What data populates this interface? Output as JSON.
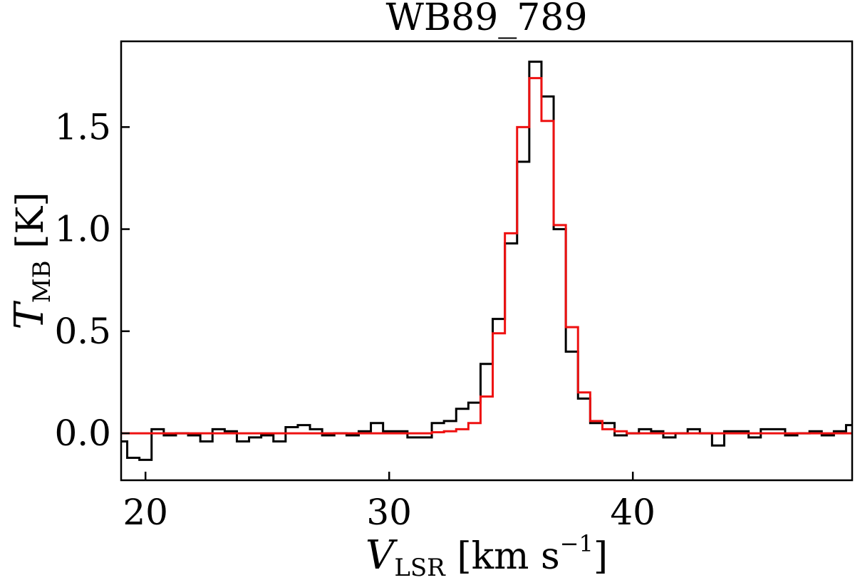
{
  "chart_data": {
    "type": "line",
    "drawstyle": "steps-mid",
    "title": "WB89_789",
    "xlabel": {
      "symbol": "V",
      "subscript": "LSR",
      "unit_open": " [km s",
      "superscript": "−1",
      "unit_close": "]"
    },
    "ylabel": {
      "symbol": "T",
      "subscript": "MB",
      "unit": " [K]"
    },
    "xlim": [
      19.0,
      49.0
    ],
    "ylim": [
      -0.23,
      1.92
    ],
    "xticks": [
      {
        "value": 20,
        "label": "20"
      },
      {
        "value": 30,
        "label": "30"
      },
      {
        "value": 40,
        "label": "40"
      }
    ],
    "yticks": [
      {
        "value": 0.0,
        "label": "0.0"
      },
      {
        "value": 0.5,
        "label": "0.5"
      },
      {
        "value": 1.0,
        "label": "1.0"
      },
      {
        "value": 1.5,
        "label": "1.5"
      }
    ],
    "colors": {
      "observed": "#000000",
      "model": "#ee1111",
      "frame": "#000000"
    },
    "series": [
      {
        "name": "observed",
        "x": [
          19.0,
          19.5,
          20.0,
          20.5,
          21.0,
          21.5,
          22.0,
          22.5,
          23.0,
          23.5,
          24.0,
          24.5,
          25.0,
          25.5,
          26.0,
          26.5,
          27.0,
          27.5,
          28.0,
          28.5,
          29.0,
          29.5,
          30.0,
          30.5,
          31.0,
          31.5,
          32.0,
          32.5,
          33.0,
          33.5,
          34.0,
          34.5,
          35.0,
          35.5,
          36.0,
          36.5,
          37.0,
          37.5,
          38.0,
          38.5,
          39.0,
          39.5,
          40.0,
          40.5,
          41.0,
          41.5,
          42.0,
          42.5,
          43.0,
          43.5,
          44.0,
          44.5,
          45.0,
          45.5,
          46.0,
          46.5,
          47.0,
          47.5,
          48.0,
          48.5,
          49.0
        ],
        "values": [
          -0.04,
          -0.12,
          -0.13,
          0.02,
          -0.01,
          0.0,
          -0.01,
          -0.04,
          0.02,
          0.01,
          -0.04,
          -0.02,
          -0.01,
          -0.04,
          0.03,
          0.04,
          0.02,
          -0.01,
          0.0,
          -0.01,
          0.01,
          0.05,
          0.01,
          0.01,
          -0.02,
          -0.02,
          0.05,
          0.06,
          0.12,
          0.15,
          0.34,
          0.56,
          0.93,
          1.33,
          1.82,
          1.65,
          1.0,
          0.4,
          0.17,
          0.05,
          0.05,
          -0.01,
          0.0,
          0.02,
          0.01,
          -0.02,
          0.0,
          0.02,
          0.0,
          -0.06,
          0.01,
          0.01,
          -0.02,
          0.02,
          0.02,
          -0.01,
          0.0,
          0.01,
          -0.01,
          0.01,
          0.04
        ]
      },
      {
        "name": "model",
        "x": [
          19.0,
          19.5,
          20.0,
          20.5,
          21.0,
          21.5,
          22.0,
          22.5,
          23.0,
          23.5,
          24.0,
          24.5,
          25.0,
          25.5,
          26.0,
          26.5,
          27.0,
          27.5,
          28.0,
          28.5,
          29.0,
          29.5,
          30.0,
          30.5,
          31.0,
          31.5,
          32.0,
          32.5,
          33.0,
          33.5,
          34.0,
          34.5,
          35.0,
          35.5,
          36.0,
          36.5,
          37.0,
          37.5,
          38.0,
          38.5,
          39.0,
          39.5,
          40.0,
          40.5,
          41.0,
          41.5,
          42.0,
          42.5,
          43.0,
          43.5,
          44.0,
          44.5,
          45.0,
          45.5,
          46.0,
          46.5,
          47.0,
          47.5,
          48.0,
          48.5,
          49.0
        ],
        "values": [
          0.0,
          0.0,
          0.0,
          0.0,
          0.0,
          0.0,
          0.0,
          0.0,
          0.0,
          0.0,
          0.0,
          0.0,
          0.0,
          0.0,
          0.0,
          0.0,
          0.0,
          0.0,
          0.0,
          0.0,
          0.0,
          0.0,
          0.0,
          0.0,
          0.0,
          0.0,
          0.005,
          0.01,
          0.02,
          0.05,
          0.18,
          0.49,
          0.98,
          1.5,
          1.74,
          1.53,
          1.02,
          0.52,
          0.2,
          0.06,
          0.02,
          0.01,
          0.0,
          0.0,
          0.0,
          0.0,
          0.0,
          0.0,
          0.0,
          0.0,
          0.0,
          0.0,
          0.0,
          0.0,
          0.0,
          0.0,
          0.0,
          0.0,
          0.0,
          0.0,
          0.0
        ]
      }
    ]
  }
}
